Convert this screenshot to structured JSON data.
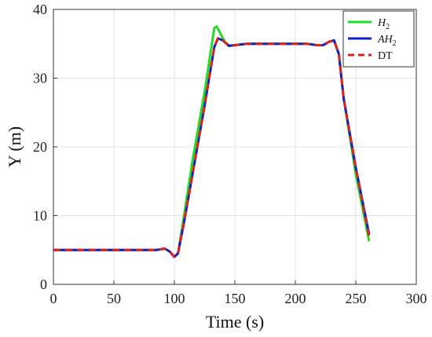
{
  "chart_data": {
    "type": "line",
    "xlabel": "Time (s)",
    "ylabel": "Y (m)",
    "xlim": [
      0,
      300
    ],
    "ylim": [
      0,
      40
    ],
    "xticks": [
      0,
      50,
      100,
      150,
      200,
      250,
      300
    ],
    "yticks": [
      0,
      10,
      20,
      30,
      40
    ],
    "grid": true,
    "legend_position": "top-right",
    "series": [
      {
        "name": "H2",
        "legend_base": "H",
        "legend_sub": "2",
        "color": "#22dd22",
        "style": "solid",
        "x": [
          0,
          85,
          92,
          96,
          100,
          103,
          108,
          115,
          125,
          133,
          135,
          138,
          142,
          146,
          150,
          160,
          180,
          200,
          210,
          218,
          223,
          228,
          232,
          236,
          240,
          250,
          261
        ],
        "y": [
          5,
          5,
          5.2,
          4.8,
          4.0,
          4.5,
          10,
          18,
          28,
          37.3,
          37.5,
          36.5,
          35.2,
          34.7,
          34.8,
          35,
          35,
          35,
          35,
          34.8,
          34.8,
          35.3,
          35.5,
          33.5,
          27,
          16,
          6.3
        ]
      },
      {
        "name": "AH2",
        "legend_base": "AH",
        "legend_sub": "2",
        "color": "#1020cc",
        "style": "solid",
        "x": [
          0,
          85,
          92,
          96,
          100,
          103,
          108,
          115,
          125,
          133,
          136,
          140,
          145,
          150,
          160,
          180,
          200,
          210,
          218,
          223,
          228,
          232,
          236,
          240,
          250,
          261
        ],
        "y": [
          5,
          5,
          5.2,
          4.8,
          4.0,
          4.5,
          9,
          16,
          26,
          34.5,
          35.8,
          35.5,
          34.7,
          34.8,
          35,
          35,
          35,
          35,
          34.8,
          34.8,
          35.3,
          35.5,
          33.5,
          27,
          17,
          7.3
        ]
      },
      {
        "name": "DT",
        "legend_base": "DT",
        "legend_sub": "",
        "color": "#dd2222",
        "style": "dashed",
        "x": [
          0,
          85,
          92,
          96,
          100,
          103,
          108,
          115,
          125,
          133,
          136,
          140,
          145,
          150,
          160,
          180,
          200,
          210,
          218,
          223,
          228,
          232,
          236,
          240,
          250,
          261
        ],
        "y": [
          5,
          5,
          5.2,
          4.8,
          4.0,
          4.5,
          9,
          16,
          26,
          34.5,
          35.8,
          35.5,
          34.7,
          34.8,
          35,
          35,
          35,
          35,
          34.8,
          34.8,
          35.3,
          35.5,
          33.5,
          27,
          17,
          7.0
        ]
      }
    ]
  }
}
